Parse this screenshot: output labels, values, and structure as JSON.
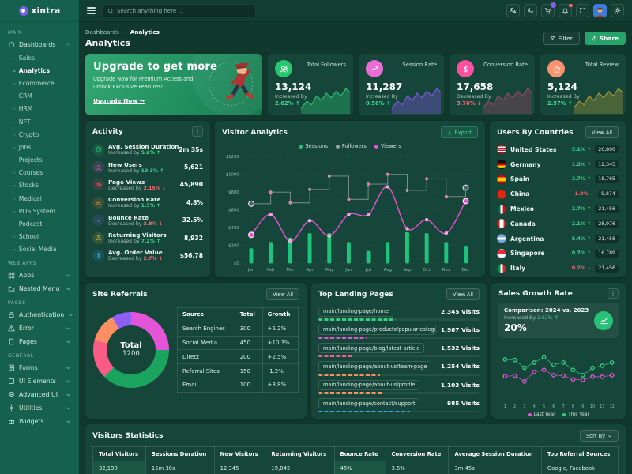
{
  "brand": {
    "name": "xintra"
  },
  "header": {
    "search_placeholder": "Search anything here ...",
    "icons": [
      {
        "name": "translate"
      },
      {
        "name": "moon"
      },
      {
        "name": "cart",
        "badge": true
      },
      {
        "name": "bell",
        "dot": true
      },
      {
        "name": "expand"
      },
      {
        "name": "avatar"
      },
      {
        "name": "gear"
      }
    ]
  },
  "sidebar": {
    "sections": [
      {
        "label": "MAIN",
        "items": [
          {
            "icon": "home",
            "label": "Dashboards",
            "caret": "up",
            "active": true,
            "active_child": "Analytics",
            "children": [
              "Sales",
              "Analytics",
              "Ecommerce",
              "CRM",
              "HRM",
              "NFT",
              "Crypto",
              "Jobs",
              "Projects",
              "Courses",
              "Stocks",
              "Medical",
              "POS System",
              "Podcast",
              "School",
              "Social Media"
            ]
          }
        ]
      },
      {
        "label": "WEB APPS",
        "items": [
          {
            "icon": "grid",
            "label": "Apps",
            "caret": "down"
          },
          {
            "icon": "folder",
            "label": "Nested Menu",
            "caret": "down"
          }
        ]
      },
      {
        "label": "PAGES",
        "items": [
          {
            "icon": "lock",
            "label": "Authentication",
            "caret": "down"
          },
          {
            "icon": "alert",
            "label": "Error",
            "caret": "down"
          },
          {
            "icon": "file",
            "label": "Pages",
            "caret": "down"
          }
        ]
      },
      {
        "label": "GENERAL",
        "items": [
          {
            "icon": "form",
            "label": "Forms",
            "caret": "down"
          },
          {
            "icon": "box",
            "label": "UI Elements",
            "caret": "down"
          },
          {
            "icon": "layers",
            "label": "Advanced UI",
            "caret": "down"
          },
          {
            "icon": "tool",
            "label": "Utilities",
            "caret": "down"
          },
          {
            "icon": "gift",
            "label": "Widgets",
            "caret": "down"
          }
        ]
      }
    ]
  },
  "page": {
    "breadcrumb_parent": "Dashboards",
    "breadcrumb_arrow": "→",
    "breadcrumb_current": "Analytics",
    "title": "Analytics",
    "filter_label": "Filter",
    "share_label": "Share"
  },
  "banner": {
    "heading": "Upgrade to get more",
    "body": "Upgrade Now for Premium Access and Unlock Exclusive Features!",
    "link": "Upgrade Now →"
  },
  "stats": [
    {
      "label": "Total Followers",
      "value": "13,124",
      "change_label": "Increased By",
      "change": "2.62% ↑",
      "trend": "up",
      "icon": "users",
      "icon_bg": "#29c76f",
      "spark_color": "#2fd181"
    },
    {
      "label": "Session Rate",
      "value": "11,287",
      "change_label": "Increased By",
      "change": "0.56% ↑",
      "trend": "up",
      "icon": "trend",
      "icon_bg": "#ee6cd6",
      "spark_color": "#8b5cf6"
    },
    {
      "label": "Conversion Rate",
      "value": "17,658",
      "change_label": "Decreased By",
      "change": "3.76% ↓",
      "trend": "down",
      "icon": "dollar",
      "icon_bg": "#fd4f9e",
      "spark_color": "#a8476b"
    },
    {
      "label": "Total Review",
      "value": "5,124",
      "change_label": "Increased By",
      "change": "2.57% ↑",
      "trend": "up",
      "icon": "thumb",
      "icon_bg": "#fb9270",
      "spark_color": "#b7a23f"
    }
  ],
  "activity": {
    "title": "Activity",
    "rows": [
      {
        "name": "Avg. Session Duration",
        "sub": "Increased by",
        "pct": "5.2% ↑",
        "trend": "up",
        "value": "2m 35s",
        "icon": "clock",
        "color": "#2fd181"
      },
      {
        "name": "New Users",
        "sub": "Increased by",
        "pct": "10.3% ↑",
        "trend": "up",
        "value": "5,621",
        "icon": "user",
        "color": "#f455d3"
      },
      {
        "name": "Page Views",
        "sub": "Decreased by",
        "pct": "2.15% ↓",
        "trend": "down",
        "value": "45,890",
        "icon": "eye",
        "color": "#e94f6a"
      },
      {
        "name": "Conversion Rate",
        "sub": "Increased by",
        "pct": "1.5% ↑",
        "trend": "up",
        "value": "4.8%",
        "icon": "chartline",
        "color": "#ff9d3c"
      },
      {
        "name": "Bounce Rate",
        "sub": "Decreased by",
        "pct": "3.8% ↓",
        "trend": "down",
        "value": "32.5%",
        "icon": "chevdown",
        "color": "#8f6bf6"
      },
      {
        "name": "Returning Visitors",
        "sub": "Increased by",
        "pct": "7.2% ↑",
        "trend": "up",
        "value": "8,932",
        "icon": "user",
        "color": "#e8c547"
      },
      {
        "name": "Avg. Order Value",
        "sub": "Decreased by",
        "pct": "2.7% ↓",
        "trend": "down",
        "value": "$56.78",
        "icon": "dollar",
        "color": "#38b6ff"
      }
    ]
  },
  "visitor_analytics": {
    "title": "Visitor Analytics",
    "export_label": "Export",
    "chart_data": {
      "type": "mixed-bar-line",
      "categories": [
        "Jan",
        "Feb",
        "Mar",
        "Apr",
        "May",
        "Jun",
        "Jul",
        "Aug",
        "Sep",
        "Oct",
        "Nov",
        "Dec"
      ],
      "ymax": 1200,
      "y_ticks": [
        {
          "v": 1200,
          "label": "$1200"
        },
        {
          "v": 1000,
          "label": "$1000"
        },
        {
          "v": 800,
          "label": "$800"
        },
        {
          "v": 600,
          "label": "$600"
        },
        {
          "v": 400,
          "label": "$400"
        },
        {
          "v": 200,
          "label": "$200"
        },
        {
          "v": 0,
          "label": "$0"
        }
      ],
      "series": [
        {
          "name": "Sessions",
          "kind": "bar",
          "color": "#1fc47c",
          "values": [
            170,
            240,
            290,
            340,
            340,
            240,
            140,
            240,
            350,
            340,
            240,
            190
          ]
        },
        {
          "name": "Followers",
          "kind": "step",
          "color": "#9aa6a0",
          "values": [
            670,
            800,
            680,
            830,
            980,
            720,
            890,
            1000,
            820,
            950,
            750,
            850
          ]
        },
        {
          "name": "Viewers",
          "kind": "smooth",
          "color": "#ec4fd8",
          "values": [
            320,
            550,
            250,
            480,
            310,
            550,
            550,
            860,
            390,
            490,
            340,
            700
          ]
        }
      ]
    }
  },
  "countries": {
    "title": "Users By Countries",
    "view_all_label": "View All",
    "rows": [
      {
        "flag": "us",
        "name": "United States",
        "pct": "5.1% ↑",
        "trend": "up",
        "value": "26,890"
      },
      {
        "flag": "de",
        "name": "Germany",
        "pct": "1.3% ↑",
        "trend": "up",
        "value": "12,345"
      },
      {
        "flag": "es",
        "name": "Spain",
        "pct": "2.7% ↑",
        "trend": "up",
        "value": "18,765"
      },
      {
        "flag": "cn",
        "name": "China",
        "pct": "1.0% ↓",
        "trend": "down",
        "value": "9,874"
      },
      {
        "flag": "mx",
        "name": "Mexico",
        "pct": "2.7% ↑",
        "trend": "up",
        "value": "21,456"
      },
      {
        "flag": "ca",
        "name": "Canada",
        "pct": "2.1% ↑",
        "trend": "up",
        "value": "28,976"
      },
      {
        "flag": "ar",
        "name": "Argentina",
        "pct": "5.4% ↑",
        "trend": "up",
        "value": "21,456"
      },
      {
        "flag": "sg",
        "name": "Singapore",
        "pct": "0.7% ↑",
        "trend": "up",
        "value": "16,789"
      },
      {
        "flag": "it",
        "name": "Italy",
        "pct": "0.2% ↓",
        "trend": "down",
        "value": "21,456"
      }
    ]
  },
  "site_referrals": {
    "title": "Site Referrals",
    "view_all_label": "View All",
    "total_label": "Total",
    "total_value": "1200",
    "chart_data": {
      "type": "pie",
      "segments": [
        {
          "name": "Search Engines",
          "value": 300,
          "color": "#e354d8"
        },
        {
          "name": "Social Media",
          "value": 450,
          "color": "#1aa45e"
        },
        {
          "name": "Direct",
          "value": 200,
          "color": "#fb5c87"
        },
        {
          "name": "Referral Sites",
          "value": 150,
          "color": "#ff8e63"
        },
        {
          "name": "Email",
          "value": 100,
          "color": "#8f5ff5"
        }
      ]
    },
    "table": {
      "columns": [
        "Source",
        "Total",
        "Growth"
      ],
      "rows": [
        {
          "source": "Search Engines",
          "total": "300",
          "growth": "+5.2%",
          "trend": "up"
        },
        {
          "source": "Social Media",
          "total": "450",
          "growth": "+10.3%",
          "trend": "up"
        },
        {
          "source": "Direct",
          "total": "200",
          "growth": "+2.5%",
          "trend": "up"
        },
        {
          "source": "Referral Sites",
          "total": "150",
          "growth": "-1.2%",
          "trend": "down"
        },
        {
          "source": "Email",
          "total": "100",
          "growth": "+3.8%",
          "trend": "up"
        }
      ]
    }
  },
  "landing_pages": {
    "title": "Top Landing Pages",
    "view_all_label": "View All",
    "rows": [
      {
        "path": "main/landing-page/home",
        "visits": "2,345 Visits",
        "pct": 48,
        "color": "#2fd181"
      },
      {
        "path": "main/landing-page/products/popular-category",
        "visits": "1,987 Visits",
        "pct": 30,
        "color": "#e354d8"
      },
      {
        "path": "main/landing-page/blog/latest-article",
        "visits": "1,532 Visits",
        "pct": 21,
        "color": "#fb5c87"
      },
      {
        "path": "main/landing-page/about-us/team-page",
        "visits": "1,254 Visits",
        "pct": 38,
        "color": "#ff8e5e"
      },
      {
        "path": "main/landing-page/about-us/profile",
        "visits": "1,103 Visits",
        "pct": 40,
        "color": "#ff8e5e"
      },
      {
        "path": "main/landing-page/contact/support",
        "visits": "985 Visits",
        "pct": 57,
        "color": "#38a7fd"
      }
    ]
  },
  "sales_growth": {
    "title": "Sales Growth Rate",
    "comparison": "Comparison: 2024 vs. 2023",
    "increased_label": "Increased By",
    "increased_pct": "2.62% ↑",
    "big_pct": "20%",
    "chart_data": {
      "type": "line",
      "x": [
        "1",
        "2",
        "3",
        "4",
        "5",
        "6",
        "7",
        "8",
        "9",
        "10",
        "11",
        "12"
      ],
      "series": [
        {
          "name": "Last Year",
          "color": "#e354d8",
          "values": [
            46,
            47,
            36,
            54,
            58,
            48,
            47,
            40,
            39,
            45,
            45,
            48
          ]
        },
        {
          "name": "This Year",
          "color": "#2fd181",
          "values": [
            78,
            77,
            62,
            72,
            82,
            68,
            72,
            58,
            48,
            62,
            66,
            72
          ]
        }
      ],
      "ylim": [
        0,
        100
      ]
    }
  },
  "visitors_stats": {
    "title": "Visitors Statistics",
    "sort_label": "Sort By",
    "columns": [
      "Total Visitors",
      "Sessions Duration",
      "New Visitors",
      "Returning Visitors",
      "Bounce Rate",
      "Conversion Rate",
      "Average Session Duration",
      "Top Referral Sources"
    ],
    "row": [
      "32,190",
      "15m 30s",
      "12,345",
      "19,845",
      "45%",
      "3.5%",
      "3m 45s",
      "Google, Facebook"
    ],
    "highlight_columns": [
      0,
      4
    ]
  },
  "colors": {
    "sidebar": "#16614d",
    "background": "#10382d",
    "card": "#164539",
    "accent_green": "#2fd181",
    "danger": "#ff6a7a",
    "magenta": "#e354d8",
    "share_button": "#27a46c"
  }
}
